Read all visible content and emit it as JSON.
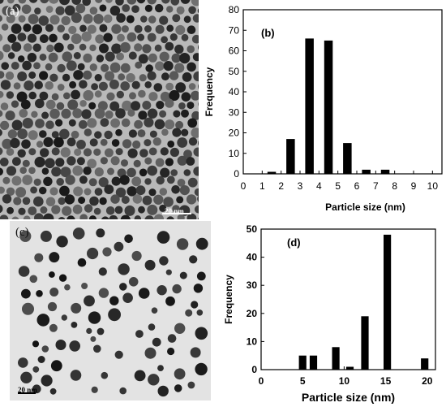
{
  "panels": {
    "a": {
      "label": "(a)",
      "scalebar": "20 nm"
    },
    "c": {
      "label": "(c)",
      "scalebar": "20 nm"
    }
  },
  "colors": {
    "bar": "#000000",
    "micro_bg_a": "#b9b9b9",
    "micro_bg_c": "#e3e3e3",
    "particle": "#262626"
  },
  "chart_data": [
    {
      "type": "bar",
      "panel_label": "(b)",
      "xlabel": "Particle size (nm)",
      "ylabel": "Frequency",
      "xlim": [
        0,
        10.5
      ],
      "ylim": [
        0,
        80
      ],
      "xticks": [
        0,
        1,
        2,
        3,
        4,
        5,
        6,
        7,
        8,
        9,
        10
      ],
      "yticks": [
        0,
        10,
        20,
        30,
        40,
        50,
        60,
        70,
        80
      ],
      "x": [
        1.5,
        2.5,
        3.5,
        4.5,
        5.5,
        6.5,
        7.5
      ],
      "values": [
        1,
        17,
        66,
        65,
        15,
        2,
        2
      ],
      "bar_width": 0.45,
      "grid": false
    },
    {
      "type": "bar",
      "panel_label": "(d)",
      "xlabel": "Particle size (nm)",
      "ylabel": "Frequency",
      "xlim": [
        0,
        21
      ],
      "ylim": [
        0,
        50
      ],
      "xticks": [
        0,
        5,
        10,
        15,
        20
      ],
      "yticks": [
        0,
        10,
        20,
        30,
        40,
        50
      ],
      "x": [
        5,
        6.3,
        9,
        10.7,
        12.5,
        15.2,
        19.7
      ],
      "values": [
        5,
        5,
        8,
        1,
        19,
        48,
        4
      ],
      "bar_width": 0.9,
      "grid": false
    }
  ]
}
